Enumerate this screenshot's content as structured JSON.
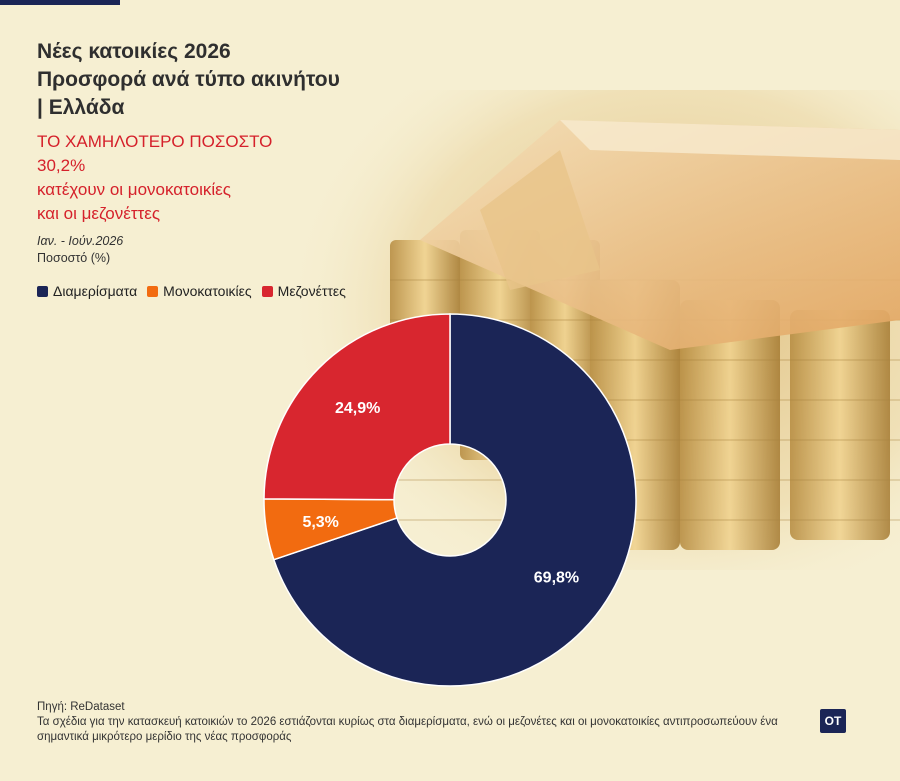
{
  "header": {
    "title_lines": [
      "Νέες κατοικίες 2026",
      "Προσφορά ανά τύπο ακινήτου",
      "| Ελλάδα"
    ],
    "subtitle_lines": [
      "ΤΟ ΧΑΜΗΛΟΤΕΡΟ ΠΟΣΟΣΤΟ",
      "30,2%",
      "κατέχουν οι μονοκατοικίες",
      "και οι μεζονέττες"
    ],
    "period": "Ιαν. - Ιούν.2026",
    "unit": "Ποσοστό (%)"
  },
  "chart_data": {
    "type": "pie",
    "donut": true,
    "categories": [
      "Διαμερίσματα",
      "Μονοκατοικίες",
      "Μεζονέττες"
    ],
    "values": [
      69.8,
      5.3,
      24.9
    ],
    "labels": [
      "69,8%",
      "5,3%",
      "24,9%"
    ],
    "colors": [
      "#1b2556",
      "#f26b10",
      "#d8262f"
    ],
    "legend_position": "top-left"
  },
  "footer": {
    "source": "Πηγή: ReDataset",
    "note": "Τα σχέδια για την κατασκευή κατοικιών το 2026 εστιάζονται κυρίως στα διαμερίσματα, ενώ οι μεζονέτες και οι μονοκατοικίες αντιπροσωπεύουν ένα σημαντικά μικρότερο μερίδιο της νέας προσφοράς",
    "logo": "OT"
  }
}
